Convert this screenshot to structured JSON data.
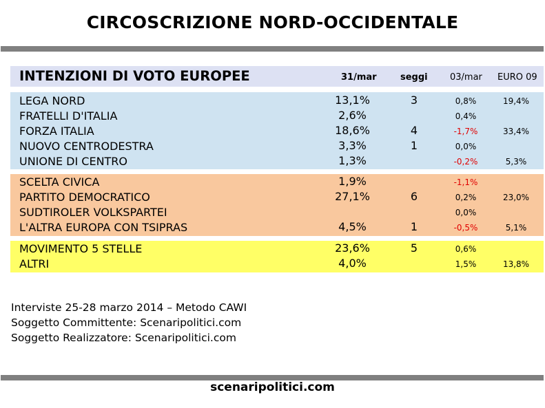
{
  "title": "CIRCOSCRIZIONE NORD-OCCIDENTALE",
  "table": {
    "heading": "INTENZIONI DI VOTO EUROPEE",
    "col_date": "31/mar",
    "col_seats": "seggi",
    "col_delta": "03/mar",
    "col_euro": "EURO 09",
    "groups": [
      {
        "color": "#cfe3f1",
        "rows": [
          {
            "party": "LEGA NORD",
            "pct": "13,1%",
            "seats": "3",
            "delta": "0,8%",
            "delta_color": "#000000",
            "euro": "19,4%"
          },
          {
            "party": "FRATELLI D'ITALIA",
            "pct": "2,6%",
            "seats": "",
            "delta": "0,4%",
            "delta_color": "#000000",
            "euro": ""
          },
          {
            "party": "FORZA ITALIA",
            "pct": "18,6%",
            "seats": "4",
            "delta": "-1,7%",
            "delta_color": "#e00000",
            "euro": "33,4%"
          },
          {
            "party": "NUOVO CENTRODESTRA",
            "pct": "3,3%",
            "seats": "1",
            "delta": "0,0%",
            "delta_color": "#000000",
            "euro": ""
          },
          {
            "party": "UNIONE DI CENTRO",
            "pct": "1,3%",
            "seats": "",
            "delta": "-0,2%",
            "delta_color": "#e00000",
            "euro": "5,3%"
          }
        ]
      },
      {
        "color": "#f9c89e",
        "rows": [
          {
            "party": "SCELTA CIVICA",
            "pct": "1,9%",
            "seats": "",
            "delta": "-1,1%",
            "delta_color": "#e00000",
            "euro": ""
          },
          {
            "party": "PARTITO DEMOCRATICO",
            "pct": "27,1%",
            "seats": "6",
            "delta": "0,2%",
            "delta_color": "#000000",
            "euro": "23,0%"
          },
          {
            "party": "SUDTIROLER VOLKSPARTEI",
            "pct": "",
            "seats": "",
            "delta": "0,0%",
            "delta_color": "#000000",
            "euro": ""
          },
          {
            "party": "L'ALTRA EUROPA CON TSIPRAS",
            "pct": "4,5%",
            "seats": "1",
            "delta": "-0,5%",
            "delta_color": "#e00000",
            "euro": "5,1%"
          }
        ]
      },
      {
        "color": "#ffff66",
        "rows": [
          {
            "party": "MOVIMENTO 5 STELLE",
            "pct": "23,6%",
            "seats": "5",
            "delta": "0,6%",
            "delta_color": "#000000",
            "euro": ""
          },
          {
            "party": "ALTRI",
            "pct": "4,0%",
            "seats": "",
            "delta": "1,5%",
            "delta_color": "#000000",
            "euro": "13,8%"
          }
        ]
      }
    ]
  },
  "notes": [
    "Interviste 25-28 marzo 2014 – Metodo CAWI",
    "Soggetto Committente: Scenaripolitici.com",
    "Soggetto Realizzatore: Scenaripolitici.com"
  ],
  "footer": "scenaripolitici.com"
}
